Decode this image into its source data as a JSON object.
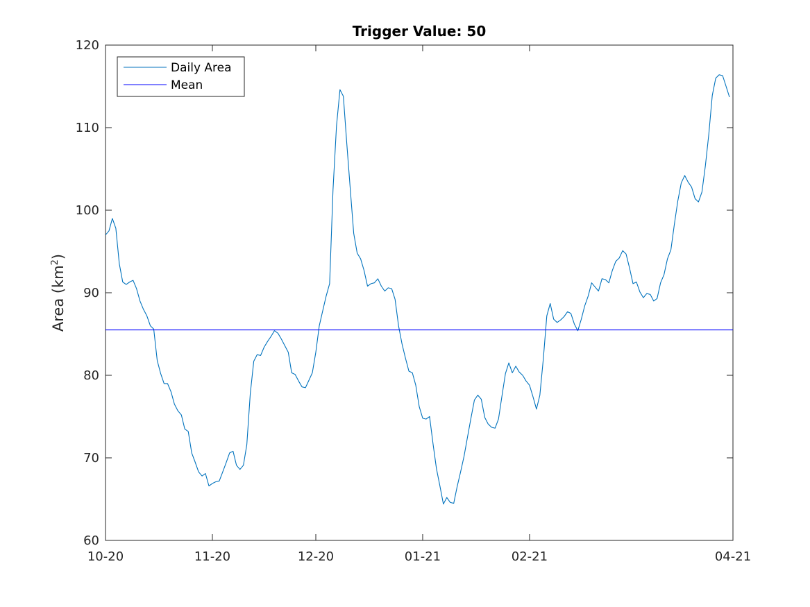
{
  "chart_data": {
    "type": "line",
    "title": "Trigger Value: 50",
    "xlabel": "",
    "ylabel": "Area (km",
    "ylabel_sup": "2",
    "ylabel_close": ")",
    "ylim": [
      60,
      120
    ],
    "xlim": [
      "2020-10-01",
      "2021-04-01"
    ],
    "x_ticks": [
      "10-20",
      "11-20",
      "12-20",
      "01-21",
      "02-21",
      "04-21"
    ],
    "y_ticks": [
      60,
      70,
      80,
      90,
      100,
      110,
      120
    ],
    "grid": false,
    "legend_position": "top-left",
    "series": [
      {
        "name": "Daily Area",
        "color": "#0072BD",
        "points": [
          [
            "2020-10-01",
            97.0
          ],
          [
            "2020-10-02",
            97.5
          ],
          [
            "2020-10-03",
            99.0
          ],
          [
            "2020-10-04",
            97.8
          ],
          [
            "2020-10-05",
            93.5
          ],
          [
            "2020-10-06",
            91.3
          ],
          [
            "2020-10-07",
            91.0
          ],
          [
            "2020-10-08",
            91.3
          ],
          [
            "2020-10-09",
            91.5
          ],
          [
            "2020-10-10",
            90.5
          ],
          [
            "2020-10-11",
            89.0
          ],
          [
            "2020-10-12",
            88.0
          ],
          [
            "2020-10-13",
            87.2
          ],
          [
            "2020-10-14",
            86.0
          ],
          [
            "2020-10-15",
            85.6
          ],
          [
            "2020-10-16",
            81.8
          ],
          [
            "2020-10-17",
            80.2
          ],
          [
            "2020-10-18",
            79.0
          ],
          [
            "2020-10-19",
            79.0
          ],
          [
            "2020-10-20",
            78.0
          ],
          [
            "2020-10-21",
            76.5
          ],
          [
            "2020-10-22",
            75.7
          ],
          [
            "2020-10-23",
            75.2
          ],
          [
            "2020-10-24",
            73.5
          ],
          [
            "2020-10-25",
            73.2
          ],
          [
            "2020-10-26",
            70.6
          ],
          [
            "2020-10-27",
            69.5
          ],
          [
            "2020-10-28",
            68.3
          ],
          [
            "2020-10-29",
            67.8
          ],
          [
            "2020-10-30",
            68.1
          ],
          [
            "2020-10-31",
            66.6
          ],
          [
            "2020-11-01",
            66.9
          ],
          [
            "2020-11-02",
            67.1
          ],
          [
            "2020-11-03",
            67.2
          ],
          [
            "2020-11-04",
            68.3
          ],
          [
            "2020-11-05",
            69.4
          ],
          [
            "2020-11-06",
            70.6
          ],
          [
            "2020-11-07",
            70.8
          ],
          [
            "2020-11-08",
            69.1
          ],
          [
            "2020-11-09",
            68.6
          ],
          [
            "2020-11-10",
            69.1
          ],
          [
            "2020-11-11",
            71.6
          ],
          [
            "2020-11-12",
            77.8
          ],
          [
            "2020-11-13",
            81.7
          ],
          [
            "2020-11-14",
            82.5
          ],
          [
            "2020-11-15",
            82.4
          ],
          [
            "2020-11-16",
            83.4
          ],
          [
            "2020-11-17",
            84.1
          ],
          [
            "2020-11-18",
            84.7
          ],
          [
            "2020-11-19",
            85.4
          ],
          [
            "2020-11-20",
            85.1
          ],
          [
            "2020-11-21",
            84.4
          ],
          [
            "2020-11-22",
            83.6
          ],
          [
            "2020-11-23",
            82.8
          ],
          [
            "2020-11-24",
            80.3
          ],
          [
            "2020-11-25",
            80.1
          ],
          [
            "2020-11-26",
            79.3
          ],
          [
            "2020-11-27",
            78.6
          ],
          [
            "2020-11-28",
            78.5
          ],
          [
            "2020-11-29",
            79.4
          ],
          [
            "2020-11-30",
            80.3
          ],
          [
            "2020-12-01",
            82.8
          ],
          [
            "2020-12-02",
            86.0
          ],
          [
            "2020-12-03",
            87.8
          ],
          [
            "2020-12-04",
            89.6
          ],
          [
            "2020-12-05",
            91.1
          ],
          [
            "2020-12-06",
            102.5
          ],
          [
            "2020-12-07",
            110.2
          ],
          [
            "2020-12-08",
            114.6
          ],
          [
            "2020-12-09",
            113.8
          ],
          [
            "2020-12-10",
            108.0
          ],
          [
            "2020-12-11",
            102.5
          ],
          [
            "2020-12-12",
            97.2
          ],
          [
            "2020-12-13",
            94.8
          ],
          [
            "2020-12-14",
            94.1
          ],
          [
            "2020-12-15",
            92.7
          ],
          [
            "2020-12-16",
            90.8
          ],
          [
            "2020-12-17",
            91.1
          ],
          [
            "2020-12-18",
            91.2
          ],
          [
            "2020-12-19",
            91.7
          ],
          [
            "2020-12-20",
            90.8
          ],
          [
            "2020-12-21",
            90.2
          ],
          [
            "2020-12-22",
            90.6
          ],
          [
            "2020-12-23",
            90.5
          ],
          [
            "2020-12-24",
            89.2
          ],
          [
            "2020-12-25",
            86.0
          ],
          [
            "2020-12-26",
            83.8
          ],
          [
            "2020-12-27",
            82.1
          ],
          [
            "2020-12-28",
            80.5
          ],
          [
            "2020-12-29",
            80.3
          ],
          [
            "2020-12-30",
            78.8
          ],
          [
            "2020-12-31",
            76.2
          ],
          [
            "2021-01-01",
            74.8
          ],
          [
            "2021-01-02",
            74.7
          ],
          [
            "2021-01-03",
            75.0
          ],
          [
            "2021-01-04",
            71.7
          ],
          [
            "2021-01-05",
            68.7
          ],
          [
            "2021-01-06",
            66.6
          ],
          [
            "2021-01-07",
            64.4
          ],
          [
            "2021-01-08",
            65.2
          ],
          [
            "2021-01-09",
            64.6
          ],
          [
            "2021-01-10",
            64.5
          ],
          [
            "2021-01-11",
            66.5
          ],
          [
            "2021-01-12",
            68.3
          ],
          [
            "2021-01-13",
            70.2
          ],
          [
            "2021-01-14",
            72.5
          ],
          [
            "2021-01-15",
            74.8
          ],
          [
            "2021-01-16",
            77.0
          ],
          [
            "2021-01-17",
            77.6
          ],
          [
            "2021-01-18",
            77.1
          ],
          [
            "2021-01-19",
            74.9
          ],
          [
            "2021-01-20",
            74.1
          ],
          [
            "2021-01-21",
            73.7
          ],
          [
            "2021-01-22",
            73.6
          ],
          [
            "2021-01-23",
            74.7
          ],
          [
            "2021-01-24",
            77.5
          ],
          [
            "2021-01-25",
            80.2
          ],
          [
            "2021-01-26",
            81.5
          ],
          [
            "2021-01-27",
            80.3
          ],
          [
            "2021-01-28",
            81.1
          ],
          [
            "2021-01-29",
            80.4
          ],
          [
            "2021-01-30",
            80.0
          ],
          [
            "2021-01-31",
            79.3
          ],
          [
            "2021-02-01",
            78.8
          ],
          [
            "2021-02-02",
            77.4
          ],
          [
            "2021-02-03",
            75.9
          ],
          [
            "2021-02-04",
            77.6
          ],
          [
            "2021-02-05",
            82.0
          ],
          [
            "2021-02-06",
            87.2
          ],
          [
            "2021-02-07",
            88.7
          ],
          [
            "2021-02-08",
            86.8
          ],
          [
            "2021-02-09",
            86.4
          ],
          [
            "2021-02-10",
            86.7
          ],
          [
            "2021-02-11",
            87.1
          ],
          [
            "2021-02-12",
            87.7
          ],
          [
            "2021-02-13",
            87.5
          ],
          [
            "2021-02-14",
            86.2
          ],
          [
            "2021-02-15",
            85.4
          ],
          [
            "2021-02-16",
            86.8
          ],
          [
            "2021-02-17",
            88.4
          ],
          [
            "2021-02-18",
            89.6
          ],
          [
            "2021-02-19",
            91.2
          ],
          [
            "2021-02-20",
            90.7
          ],
          [
            "2021-02-21",
            90.2
          ],
          [
            "2021-02-22",
            91.7
          ],
          [
            "2021-02-23",
            91.6
          ],
          [
            "2021-02-24",
            91.2
          ],
          [
            "2021-02-25",
            92.7
          ],
          [
            "2021-02-26",
            93.8
          ],
          [
            "2021-02-27",
            94.2
          ],
          [
            "2021-02-28",
            95.1
          ],
          [
            "2021-03-01",
            94.7
          ],
          [
            "2021-03-02",
            93.0
          ],
          [
            "2021-03-03",
            91.1
          ],
          [
            "2021-03-04",
            91.3
          ],
          [
            "2021-03-05",
            90.1
          ],
          [
            "2021-03-06",
            89.4
          ],
          [
            "2021-03-07",
            89.9
          ],
          [
            "2021-03-08",
            89.8
          ],
          [
            "2021-03-09",
            89.0
          ],
          [
            "2021-03-10",
            89.3
          ],
          [
            "2021-03-11",
            91.2
          ],
          [
            "2021-03-12",
            92.2
          ],
          [
            "2021-03-13",
            94.1
          ],
          [
            "2021-03-14",
            95.2
          ],
          [
            "2021-03-15",
            98.3
          ],
          [
            "2021-03-16",
            101.1
          ],
          [
            "2021-03-17",
            103.3
          ],
          [
            "2021-03-18",
            104.2
          ],
          [
            "2021-03-19",
            103.4
          ],
          [
            "2021-03-20",
            102.8
          ],
          [
            "2021-03-21",
            101.4
          ],
          [
            "2021-03-22",
            101.0
          ],
          [
            "2021-03-23",
            102.2
          ],
          [
            "2021-03-24",
            105.4
          ],
          [
            "2021-03-25",
            109.2
          ],
          [
            "2021-03-26",
            113.9
          ],
          [
            "2021-03-27",
            116.0
          ],
          [
            "2021-03-28",
            116.4
          ],
          [
            "2021-03-29",
            116.3
          ],
          [
            "2021-03-30",
            115.0
          ],
          [
            "2021-03-31",
            113.7
          ]
        ]
      },
      {
        "name": "Mean",
        "color": "#0000FF",
        "points": [
          [
            "2020-10-01",
            85.5
          ],
          [
            "2021-04-01",
            85.5
          ]
        ]
      }
    ]
  }
}
